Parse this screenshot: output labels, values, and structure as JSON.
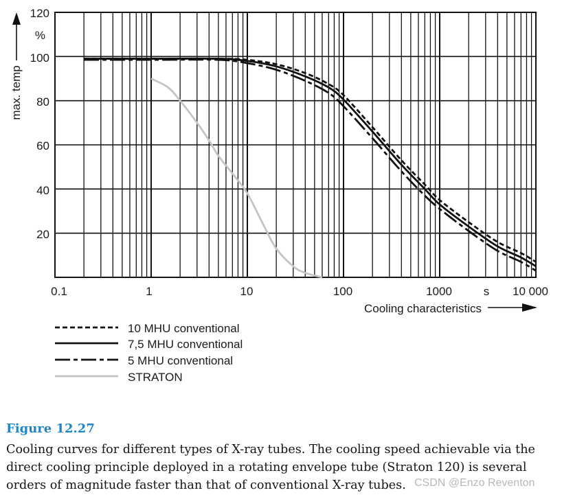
{
  "chart_data": {
    "type": "line",
    "x_scale": "log",
    "xlim": [
      0.1,
      10000
    ],
    "ylim": [
      0,
      120
    ],
    "x_tick_labels": [
      "0.1",
      "1",
      "10",
      "100",
      "1000",
      "s",
      "10 000"
    ],
    "y_tick_labels": [
      "120",
      "%",
      "100",
      "80",
      "60",
      "40",
      "20"
    ],
    "ylabel": "max. temp",
    "xlabel": "Cooling characteristics",
    "grid": true,
    "legend_position": "below-left",
    "series": [
      {
        "name": "10 MHU conventional",
        "style": "dotted",
        "color": "#111111",
        "x": [
          0.2,
          1,
          5,
          10,
          20,
          40,
          70,
          100,
          200,
          400,
          700,
          1000,
          2000,
          4000,
          7000,
          10000
        ],
        "y": [
          99,
          99,
          99,
          98.5,
          96.5,
          92.5,
          87.5,
          82.5,
          68,
          53,
          42,
          35,
          25,
          16,
          11,
          7
        ]
      },
      {
        "name": "7,5 MHU conventional",
        "style": "solid",
        "color": "#111111",
        "x": [
          0.2,
          1,
          5,
          10,
          20,
          40,
          70,
          100,
          200,
          400,
          700,
          1000,
          2000,
          4000,
          7000,
          10000
        ],
        "y": [
          99,
          99,
          99,
          98,
          95.5,
          91,
          86,
          80.5,
          66,
          51,
          40,
          33,
          23,
          14,
          9,
          5
        ]
      },
      {
        "name": "5 MHU conventional",
        "style": "dash-dot",
        "color": "#111111",
        "x": [
          0.2,
          1,
          5,
          10,
          20,
          40,
          70,
          100,
          200,
          400,
          700,
          1000,
          2000,
          4000,
          7000,
          10000
        ],
        "y": [
          98.5,
          98.5,
          98.5,
          97,
          94,
          89,
          83.5,
          77.5,
          63,
          48,
          37,
          31,
          21,
          12,
          7,
          3
        ]
      },
      {
        "name": "STRATON",
        "style": "solid",
        "color": "#c4c4c4",
        "x": [
          1,
          1.5,
          2,
          3,
          4,
          5,
          7,
          10,
          15,
          20,
          30,
          40,
          60
        ],
        "y": [
          90,
          86,
          80,
          70,
          62,
          55,
          47,
          38,
          23,
          13,
          5,
          2,
          0
        ]
      }
    ]
  },
  "caption": {
    "label": "Figure 12.27",
    "text": "Cooling curves for different types of X-ray tubes. The cooling speed achievable via the direct cooling principle deployed in a rotating envelope tube (Straton 120) is several orders of magnitude faster than that of conventional X-ray tubes."
  },
  "watermark": "CSDN @Enzo Reventon"
}
